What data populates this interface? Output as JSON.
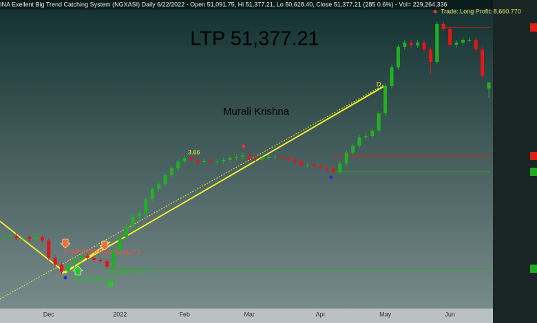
{
  "chart_data": {
    "type": "candlestick",
    "title": "INA Exellent Big Trend Catching System (NGXASI) Daily  6/22/2022 - Open 51,091.75, Hi 51,377.21, Lo 50,628.40, Close 51,377.21 (285 0.6%) - Vol= 229,264,336",
    "annotations": {
      "ltp": "LTP 51,377.21",
      "author": "Murali Krishna",
      "trade": "Trade: Long Profit: 8,660.770",
      "point_d": "D",
      "ratio": "3.66",
      "sell1": "Sell@41686.0",
      "sell2": "Sell@41607.1",
      "buy1": "Buy@42357.4",
      "buy2": "Buy@42716.4"
    },
    "categories": [
      null,
      null,
      null,
      null,
      null,
      null,
      null,
      "Dec",
      null,
      null,
      null,
      null,
      null,
      null,
      null,
      null,
      null,
      null,
      "2022",
      null,
      null,
      null,
      null,
      null,
      null,
      null,
      null,
      null,
      "Feb",
      null,
      null,
      null,
      null,
      null,
      null,
      null,
      null,
      null,
      "Mar",
      null,
      null,
      null,
      null,
      null,
      null,
      null,
      null,
      null,
      null,
      "Apr",
      null,
      null,
      null,
      null,
      null,
      null,
      null,
      null,
      null,
      "May",
      null,
      null,
      null,
      null,
      null,
      null,
      null,
      null,
      null,
      "Jun",
      null,
      null,
      null,
      null,
      null,
      null
    ],
    "candles": [
      [
        43900,
        44070,
        43780,
        43952
      ],
      [
        43952,
        44140,
        43830,
        44018
      ],
      [
        44018,
        44140,
        43800,
        43919
      ],
      [
        43919,
        44070,
        43800,
        43952
      ],
      [
        43952,
        44070,
        43730,
        43853
      ],
      [
        43853,
        44070,
        43730,
        43952
      ],
      [
        43952,
        44070,
        43670,
        43787
      ],
      [
        43787,
        43900,
        42840,
        42962
      ],
      [
        42962,
        43080,
        42510,
        42632
      ],
      [
        42632,
        42750,
        42180,
        42302
      ],
      [
        42302,
        42750,
        42180,
        42632
      ],
      [
        42632,
        42980,
        42510,
        42863
      ],
      [
        42863,
        43180,
        42740,
        43061
      ],
      [
        43061,
        43180,
        42840,
        42962
      ],
      [
        42962,
        43080,
        42740,
        42863
      ],
      [
        42863,
        42980,
        42680,
        42797
      ],
      [
        42797,
        42920,
        42410,
        42533
      ],
      [
        42533,
        43410,
        42410,
        43292
      ],
      [
        43292,
        44070,
        43170,
        43952
      ],
      [
        43952,
        44570,
        43830,
        44447
      ],
      [
        44447,
        45060,
        44330,
        44942
      ],
      [
        44942,
        45230,
        44820,
        45107
      ],
      [
        45107,
        45890,
        44990,
        45767
      ],
      [
        45767,
        46380,
        45650,
        46262
      ],
      [
        46262,
        46610,
        46140,
        46493
      ],
      [
        46493,
        47040,
        46370,
        46922
      ],
      [
        46922,
        47370,
        46800,
        47252
      ],
      [
        47252,
        47700,
        47130,
        47582
      ],
      [
        47582,
        47870,
        47460,
        47747
      ],
      [
        47747,
        47870,
        47530,
        47648
      ],
      [
        47648,
        47770,
        47430,
        47549
      ],
      [
        47549,
        47740,
        47430,
        47615
      ],
      [
        47615,
        47740,
        47430,
        47549
      ],
      [
        47549,
        47700,
        47430,
        47582
      ],
      [
        47582,
        47770,
        47460,
        47648
      ],
      [
        47648,
        47870,
        47530,
        47747
      ],
      [
        47747,
        47930,
        47630,
        47813
      ],
      [
        47813,
        48000,
        47690,
        47879
      ],
      [
        47879,
        48000,
        47630,
        47747
      ],
      [
        47747,
        47870,
        47560,
        47681
      ],
      [
        47681,
        47870,
        47560,
        47747
      ],
      [
        47747,
        47930,
        47630,
        47813
      ],
      [
        47813,
        47930,
        47690,
        47813
      ],
      [
        47813,
        47930,
        47630,
        47747
      ],
      [
        47747,
        47870,
        47560,
        47681
      ],
      [
        47681,
        47800,
        47460,
        47582
      ],
      [
        47582,
        47700,
        47300,
        47417
      ],
      [
        47417,
        47540,
        47300,
        47417
      ],
      [
        47417,
        47540,
        47230,
        47351
      ],
      [
        47351,
        47470,
        47170,
        47285
      ],
      [
        47285,
        47400,
        47100,
        47219
      ],
      [
        47219,
        47340,
        46970,
        47087
      ],
      [
        47087,
        47600,
        46970,
        47483
      ],
      [
        47483,
        48130,
        47360,
        48011
      ],
      [
        48011,
        48460,
        47890,
        48341
      ],
      [
        48341,
        48860,
        48220,
        48737
      ],
      [
        48737,
        48920,
        48620,
        48803
      ],
      [
        48803,
        49190,
        48680,
        49067
      ],
      [
        49067,
        50010,
        48950,
        49892
      ],
      [
        49892,
        51330,
        49770,
        51212
      ],
      [
        51212,
        52220,
        51090,
        52103
      ],
      [
        52103,
        53210,
        51980,
        53093
      ],
      [
        53093,
        53410,
        52970,
        53291
      ],
      [
        53291,
        53410,
        53040,
        53159
      ],
      [
        53159,
        53410,
        53040,
        53291
      ],
      [
        53291,
        53410,
        52840,
        52961
      ],
      [
        52961,
        53080,
        51800,
        52367
      ],
      [
        52367,
        54300,
        52250,
        54182
      ],
      [
        54182,
        54300,
        53830,
        53951
      ],
      [
        53951,
        54070,
        53070,
        53192
      ],
      [
        53192,
        53410,
        53070,
        53291
      ],
      [
        53291,
        53540,
        53170,
        53423
      ],
      [
        53423,
        53540,
        53300,
        53423
      ],
      [
        53423,
        53540,
        52840,
        52961
      ],
      [
        52961,
        53080,
        51590,
        51707
      ],
      [
        51091.75,
        51377.21,
        50628.4,
        51377.21
      ]
    ],
    "up_color": "#22b022",
    "down_color": "#e01818",
    "ylim": [
      40487,
      55337
    ]
  }
}
